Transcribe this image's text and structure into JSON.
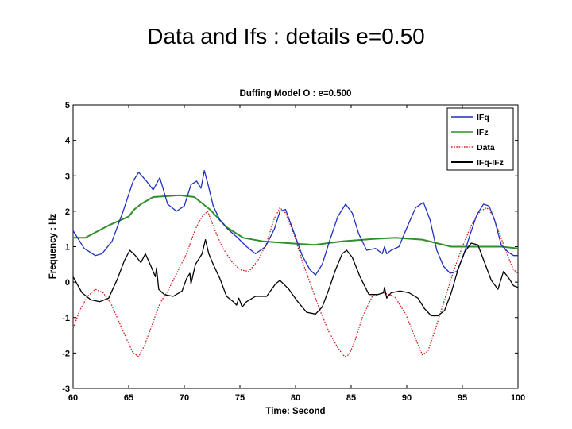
{
  "slide": {
    "title": "Data and Ifs : details e=0.50"
  },
  "chart_data": {
    "type": "line",
    "title": "Duffing Model O : e=0.500",
    "xlabel": "Time: Second",
    "ylabel": "Frequency : Hz",
    "xlim": [
      60,
      100
    ],
    "ylim": [
      -3,
      5
    ],
    "xticks": [
      "60",
      "65",
      "70",
      "75",
      "80",
      "85",
      "90",
      "95",
      "100"
    ],
    "yticks": [
      "5",
      "4",
      "3",
      "2",
      "1",
      "0",
      "-1",
      "-2",
      "-3"
    ],
    "grid": false,
    "legend_position": "top-right",
    "series": [
      {
        "name": "IFq",
        "color": "#1f2fbf",
        "style": "solid",
        "x": [
          60,
          61,
          62,
          62.6,
          63.5,
          64.5,
          65.4,
          65.9,
          66.6,
          67.2,
          67.8,
          68.5,
          69.3,
          70,
          70.6,
          71.1,
          71.5,
          71.8,
          72.1,
          72.6,
          73.2,
          73.9,
          74.8,
          75.6,
          76.4,
          77.3,
          78.1,
          78.6,
          79.1,
          79.8,
          80.6,
          81.3,
          81.8,
          82.4,
          83.1,
          83.8,
          84.5,
          85.1,
          85.7,
          86.4,
          87.2,
          87.8,
          88,
          88.2,
          88.6,
          89.3,
          90.1,
          90.8,
          91.5,
          92.1,
          92.7,
          93.3,
          93.9,
          94.5,
          95.1,
          95.7,
          96.3,
          96.9,
          97.4,
          97.9,
          98.5,
          99.1,
          99.6,
          100
        ],
        "y": [
          1.45,
          0.95,
          0.75,
          0.8,
          1.15,
          2.0,
          2.85,
          3.1,
          2.85,
          2.6,
          2.95,
          2.2,
          2.0,
          2.15,
          2.75,
          2.85,
          2.65,
          3.15,
          2.8,
          2.15,
          1.75,
          1.5,
          1.25,
          1.0,
          0.8,
          1.0,
          1.5,
          2.0,
          2.05,
          1.45,
          0.75,
          0.35,
          0.2,
          0.5,
          1.2,
          1.85,
          2.2,
          1.95,
          1.35,
          0.9,
          0.95,
          0.8,
          1.0,
          0.8,
          0.9,
          1.0,
          1.6,
          2.1,
          2.25,
          1.75,
          0.9,
          0.45,
          0.25,
          0.3,
          0.75,
          1.35,
          1.9,
          2.2,
          2.15,
          1.75,
          1.05,
          0.85,
          0.75,
          0.75
        ]
      },
      {
        "name": "IFz",
        "color": "#2f8f2a",
        "style": "solid",
        "x": [
          60,
          61.1,
          61.1,
          63.2,
          63.2,
          65.0,
          65.0,
          65.5,
          65.5,
          66.1,
          66.1,
          67.2,
          67.2,
          69.6,
          69.6,
          70.9,
          70.9,
          72.3,
          72.3,
          73.8,
          73.8,
          75.3,
          75.3,
          77.1,
          77.1,
          79.3,
          79.3,
          81.7,
          81.7,
          84.2,
          84.2,
          87.0,
          87.0,
          89.0,
          89.0,
          91.4,
          91.4,
          94.0,
          94.0,
          98.5,
          98.5,
          100
        ],
        "y": [
          1.25,
          1.25,
          1.25,
          1.6,
          1.6,
          1.85,
          1.85,
          2.05,
          2.05,
          2.2,
          2.2,
          2.4,
          2.4,
          2.45,
          2.45,
          2.4,
          2.4,
          2.05,
          2.05,
          1.55,
          1.55,
          1.25,
          1.25,
          1.15,
          1.15,
          1.1,
          1.1,
          1.05,
          1.05,
          1.15,
          1.15,
          1.22,
          1.22,
          1.25,
          1.25,
          1.2,
          1.2,
          1.0,
          1.0,
          1.0,
          1.0,
          0.95
        ]
      },
      {
        "name": "Data",
        "color": "#cc1f1f",
        "style": "dotted",
        "x": [
          60,
          60.6,
          61.3,
          62,
          62.7,
          63.4,
          64.1,
          64.8,
          65.4,
          65.9,
          66.4,
          67.0,
          67.8,
          68.6,
          69.4,
          70.2,
          71.0,
          71.6,
          72.1,
          72.7,
          73.4,
          74.2,
          75.0,
          75.8,
          76.6,
          77.4,
          78.1,
          78.6,
          79.1,
          79.8,
          80.6,
          81.4,
          82.2,
          83.0,
          83.8,
          84.4,
          84.8,
          85.3,
          86.0,
          86.9,
          87.9,
          88.9,
          89.9,
          90.8,
          91.4,
          91.9,
          92.6,
          93.4,
          94.2,
          95.0,
          95.8,
          96.6,
          97.2,
          97.7,
          98.3,
          99.0,
          99.6,
          100
        ],
        "y": [
          -1.3,
          -0.8,
          -0.4,
          -0.2,
          -0.3,
          -0.6,
          -1.1,
          -1.6,
          -2.0,
          -2.1,
          -1.8,
          -1.3,
          -0.6,
          -0.2,
          0.3,
          0.8,
          1.5,
          1.85,
          2.0,
          1.5,
          1.0,
          0.6,
          0.35,
          0.3,
          0.6,
          1.1,
          1.8,
          2.1,
          1.95,
          1.4,
          0.6,
          -0.1,
          -0.8,
          -1.4,
          -1.85,
          -2.1,
          -2.05,
          -1.7,
          -1.0,
          -0.4,
          -0.3,
          -0.4,
          -0.9,
          -1.6,
          -2.05,
          -1.95,
          -1.3,
          -0.5,
          0.3,
          1.0,
          1.6,
          2.0,
          2.1,
          1.9,
          1.4,
          0.8,
          0.35,
          0.25
        ]
      },
      {
        "name": "IFq-IFz",
        "color": "#000000",
        "style": "solid",
        "x": [
          60,
          60.8,
          61.6,
          62.4,
          63.2,
          64,
          64.6,
          65.1,
          65.6,
          66.1,
          66.5,
          67.0,
          67.4,
          67.5,
          67.7,
          68.2,
          69,
          69.8,
          70.2,
          70.5,
          70.6,
          71.0,
          71.6,
          71.9,
          72.2,
          72.6,
          73.2,
          73.8,
          74.4,
          74.7,
          74.9,
          75.2,
          75.6,
          76.4,
          77.4,
          78.2,
          78.6,
          79.4,
          80.2,
          81,
          81.8,
          82.4,
          83,
          83.6,
          84.2,
          84.6,
          85.1,
          85.8,
          86.6,
          87.4,
          87.9,
          88.0,
          88.2,
          88.6,
          89.4,
          90.2,
          91,
          91.6,
          92.2,
          92.8,
          93.4,
          94,
          94.6,
          95.2,
          95.8,
          96.4,
          97,
          97.6,
          98.2,
          98.7,
          99.2,
          99.6,
          100
        ],
        "y": [
          0.15,
          -0.3,
          -0.5,
          -0.55,
          -0.45,
          0.1,
          0.6,
          0.9,
          0.75,
          0.55,
          0.8,
          0.45,
          0.15,
          0.4,
          -0.2,
          -0.35,
          -0.4,
          -0.25,
          0.1,
          0.25,
          -0.05,
          0.5,
          0.8,
          1.2,
          0.8,
          0.5,
          0.1,
          -0.4,
          -0.55,
          -0.65,
          -0.45,
          -0.7,
          -0.55,
          -0.4,
          -0.4,
          -0.05,
          0.05,
          -0.2,
          -0.55,
          -0.85,
          -0.9,
          -0.7,
          -0.2,
          0.35,
          0.8,
          0.9,
          0.7,
          0.15,
          -0.35,
          -0.35,
          -0.3,
          -0.15,
          -0.45,
          -0.3,
          -0.25,
          -0.3,
          -0.45,
          -0.75,
          -0.95,
          -0.95,
          -0.8,
          -0.3,
          0.35,
          0.85,
          1.1,
          1.05,
          0.55,
          0.05,
          -0.2,
          0.3,
          0.1,
          -0.1,
          -0.15
        ]
      }
    ]
  }
}
